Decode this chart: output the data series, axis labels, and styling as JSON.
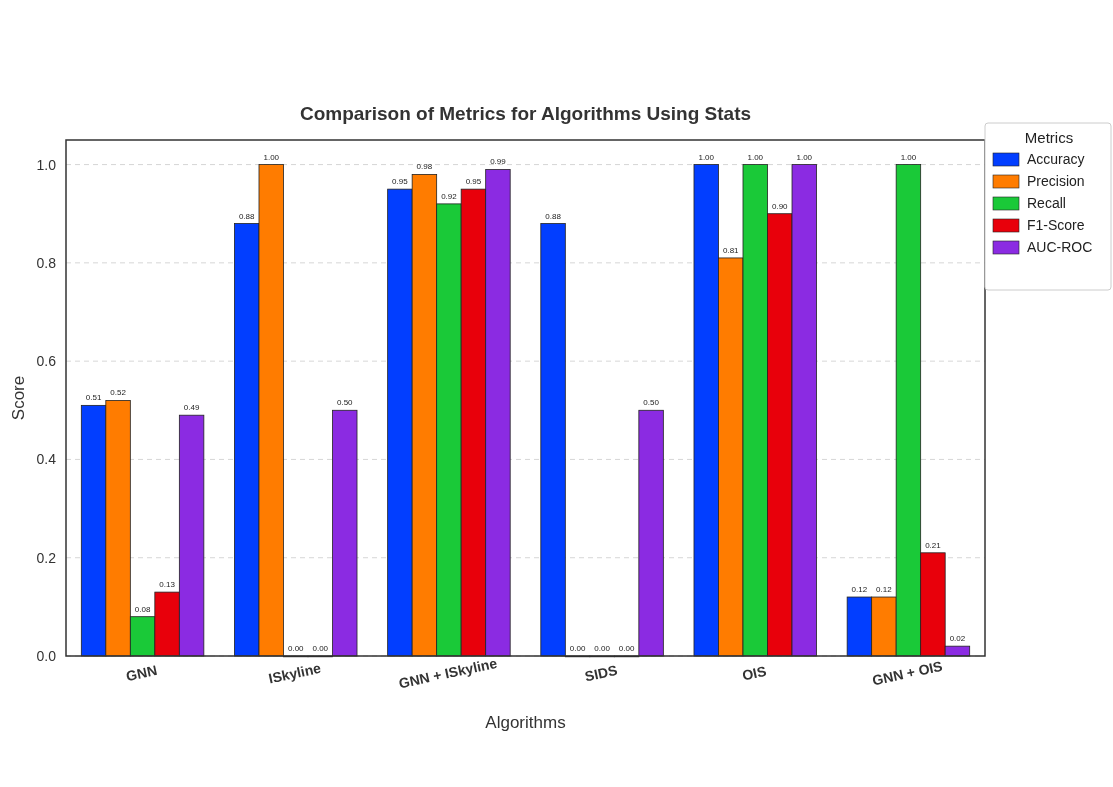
{
  "chart_data": {
    "type": "bar",
    "title": "Comparison of Metrics for Algorithms Using Stats",
    "xlabel": "Algorithms",
    "ylabel": "Score",
    "legend_title": "Metrics",
    "categories": [
      "GNN",
      "ISkyline",
      "GNN + ISkyline",
      "SIDS",
      "OIS",
      "GNN + OIS"
    ],
    "series": [
      {
        "name": "Accuracy",
        "color": "#023eff",
        "values": [
          0.51,
          0.88,
          0.95,
          0.88,
          1.0,
          0.12
        ],
        "value_labels": [
          "0.51",
          "0.88",
          "0.95",
          "0.88",
          "1.00",
          "0.12"
        ]
      },
      {
        "name": "Precision",
        "color": "#ff7c00",
        "values": [
          0.52,
          1.0,
          0.98,
          0.0,
          0.81,
          0.12
        ],
        "value_labels": [
          "0.52",
          "1.00",
          "0.98",
          "0.00",
          "0.81",
          "0.12"
        ]
      },
      {
        "name": "Recall",
        "color": "#1ac938",
        "values": [
          0.08,
          0.0,
          0.92,
          0.0,
          1.0,
          1.0
        ],
        "value_labels": [
          "0.08",
          "0.00",
          "0.92",
          "0.00",
          "1.00",
          "1.00"
        ]
      },
      {
        "name": "F1-Score",
        "color": "#e8000b",
        "values": [
          0.13,
          0.0,
          0.95,
          0.0,
          0.9,
          0.21
        ],
        "value_labels": [
          "0.13",
          "0.00",
          "0.95",
          "0.00",
          "0.90",
          "0.21"
        ]
      },
      {
        "name": "AUC-ROC",
        "color": "#8b2be2",
        "values": [
          0.49,
          0.5,
          0.99,
          0.5,
          1.0,
          0.02
        ],
        "value_labels": [
          "0.49",
          "0.50",
          "0.99",
          "0.50",
          "1.00",
          "0.02"
        ]
      }
    ],
    "ylim": [
      0,
      1.05
    ],
    "yticks": [
      {
        "value": 0,
        "label": "0.0"
      },
      {
        "value": 0.2,
        "label": "0.2"
      },
      {
        "value": 0.4,
        "label": "0.4"
      },
      {
        "value": 0.6,
        "label": "0.6"
      },
      {
        "value": 0.8,
        "label": "0.8"
      },
      {
        "value": 1,
        "label": "1.0"
      }
    ],
    "grid": "y",
    "legend": "top right"
  }
}
